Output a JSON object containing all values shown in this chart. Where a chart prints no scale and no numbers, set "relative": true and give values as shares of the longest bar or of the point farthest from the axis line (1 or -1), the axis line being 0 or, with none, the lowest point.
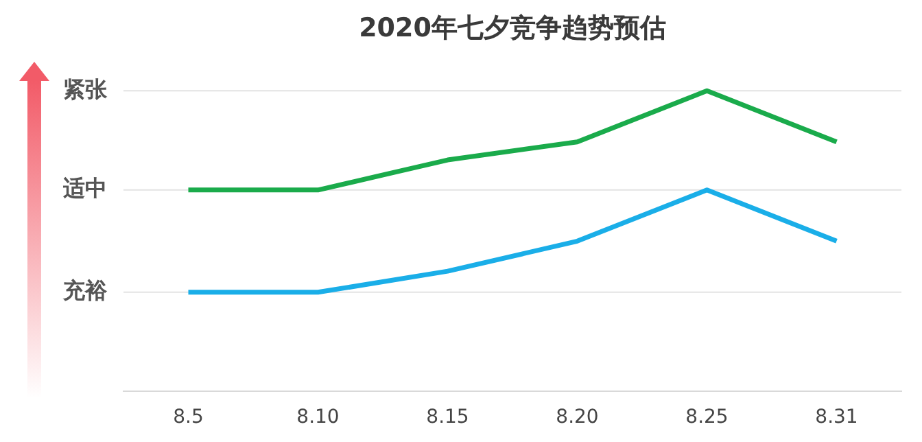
{
  "chart_data": {
    "type": "line",
    "title": "2020年七夕竞争趋势预估",
    "relative": true,
    "categories": [
      "8.5",
      "8.10",
      "8.15",
      "8.20",
      "8.25",
      "8.31"
    ],
    "series": [
      {
        "color": "#1aab4b",
        "values": [
          0.67,
          0.67,
          0.77,
          0.83,
          1,
          0.83
        ]
      },
      {
        "color": "#1aaee8",
        "values": [
          0.33,
          0.33,
          0.4,
          0.5,
          0.67,
          0.5
        ]
      }
    ],
    "ref_lines": [
      {
        "axis": "y",
        "value": 0.33,
        "label": "充裕",
        "color": "#e3e3e3"
      },
      {
        "axis": "y",
        "value": 0.67,
        "label": "适中",
        "color": "#e3e3e3"
      },
      {
        "axis": "y",
        "value": 1,
        "label": "紧张",
        "color": "#e3e3e3"
      }
    ],
    "grid": false,
    "legend": false,
    "marker": "none",
    "line_style": "solid"
  }
}
